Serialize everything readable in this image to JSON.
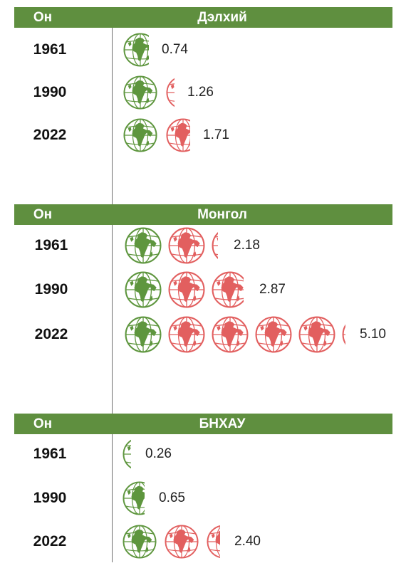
{
  "chart_data": [
    {
      "type": "pictogram",
      "column_header": "Он",
      "title": "Дэлхий",
      "rows": [
        {
          "year": "1961",
          "value": 0.74,
          "label": "0.74"
        },
        {
          "year": "1990",
          "value": 1.26,
          "label": "1.26"
        },
        {
          "year": "2022",
          "value": 1.71,
          "label": "1.71"
        }
      ]
    },
    {
      "type": "pictogram",
      "column_header": "Он",
      "title": "Монгол",
      "rows": [
        {
          "year": "1961",
          "value": 2.18,
          "label": "2.18"
        },
        {
          "year": "1990",
          "value": 2.87,
          "label": "2.87"
        },
        {
          "year": "2022",
          "value": 5.1,
          "label": "5.10"
        }
      ]
    },
    {
      "type": "pictogram",
      "column_header": "Он",
      "title": "БНХАУ",
      "rows": [
        {
          "year": "1961",
          "value": 0.26,
          "label": "0.26"
        },
        {
          "year": "1990",
          "value": 0.65,
          "label": "0.65"
        },
        {
          "year": "2022",
          "value": 2.4,
          "label": "2.40"
        }
      ]
    }
  ],
  "colors": {
    "header": "#5f8f3f",
    "first_globe": "#5e963e",
    "extra_globe": "#e25f5f",
    "divider": "#6f6f6f"
  }
}
